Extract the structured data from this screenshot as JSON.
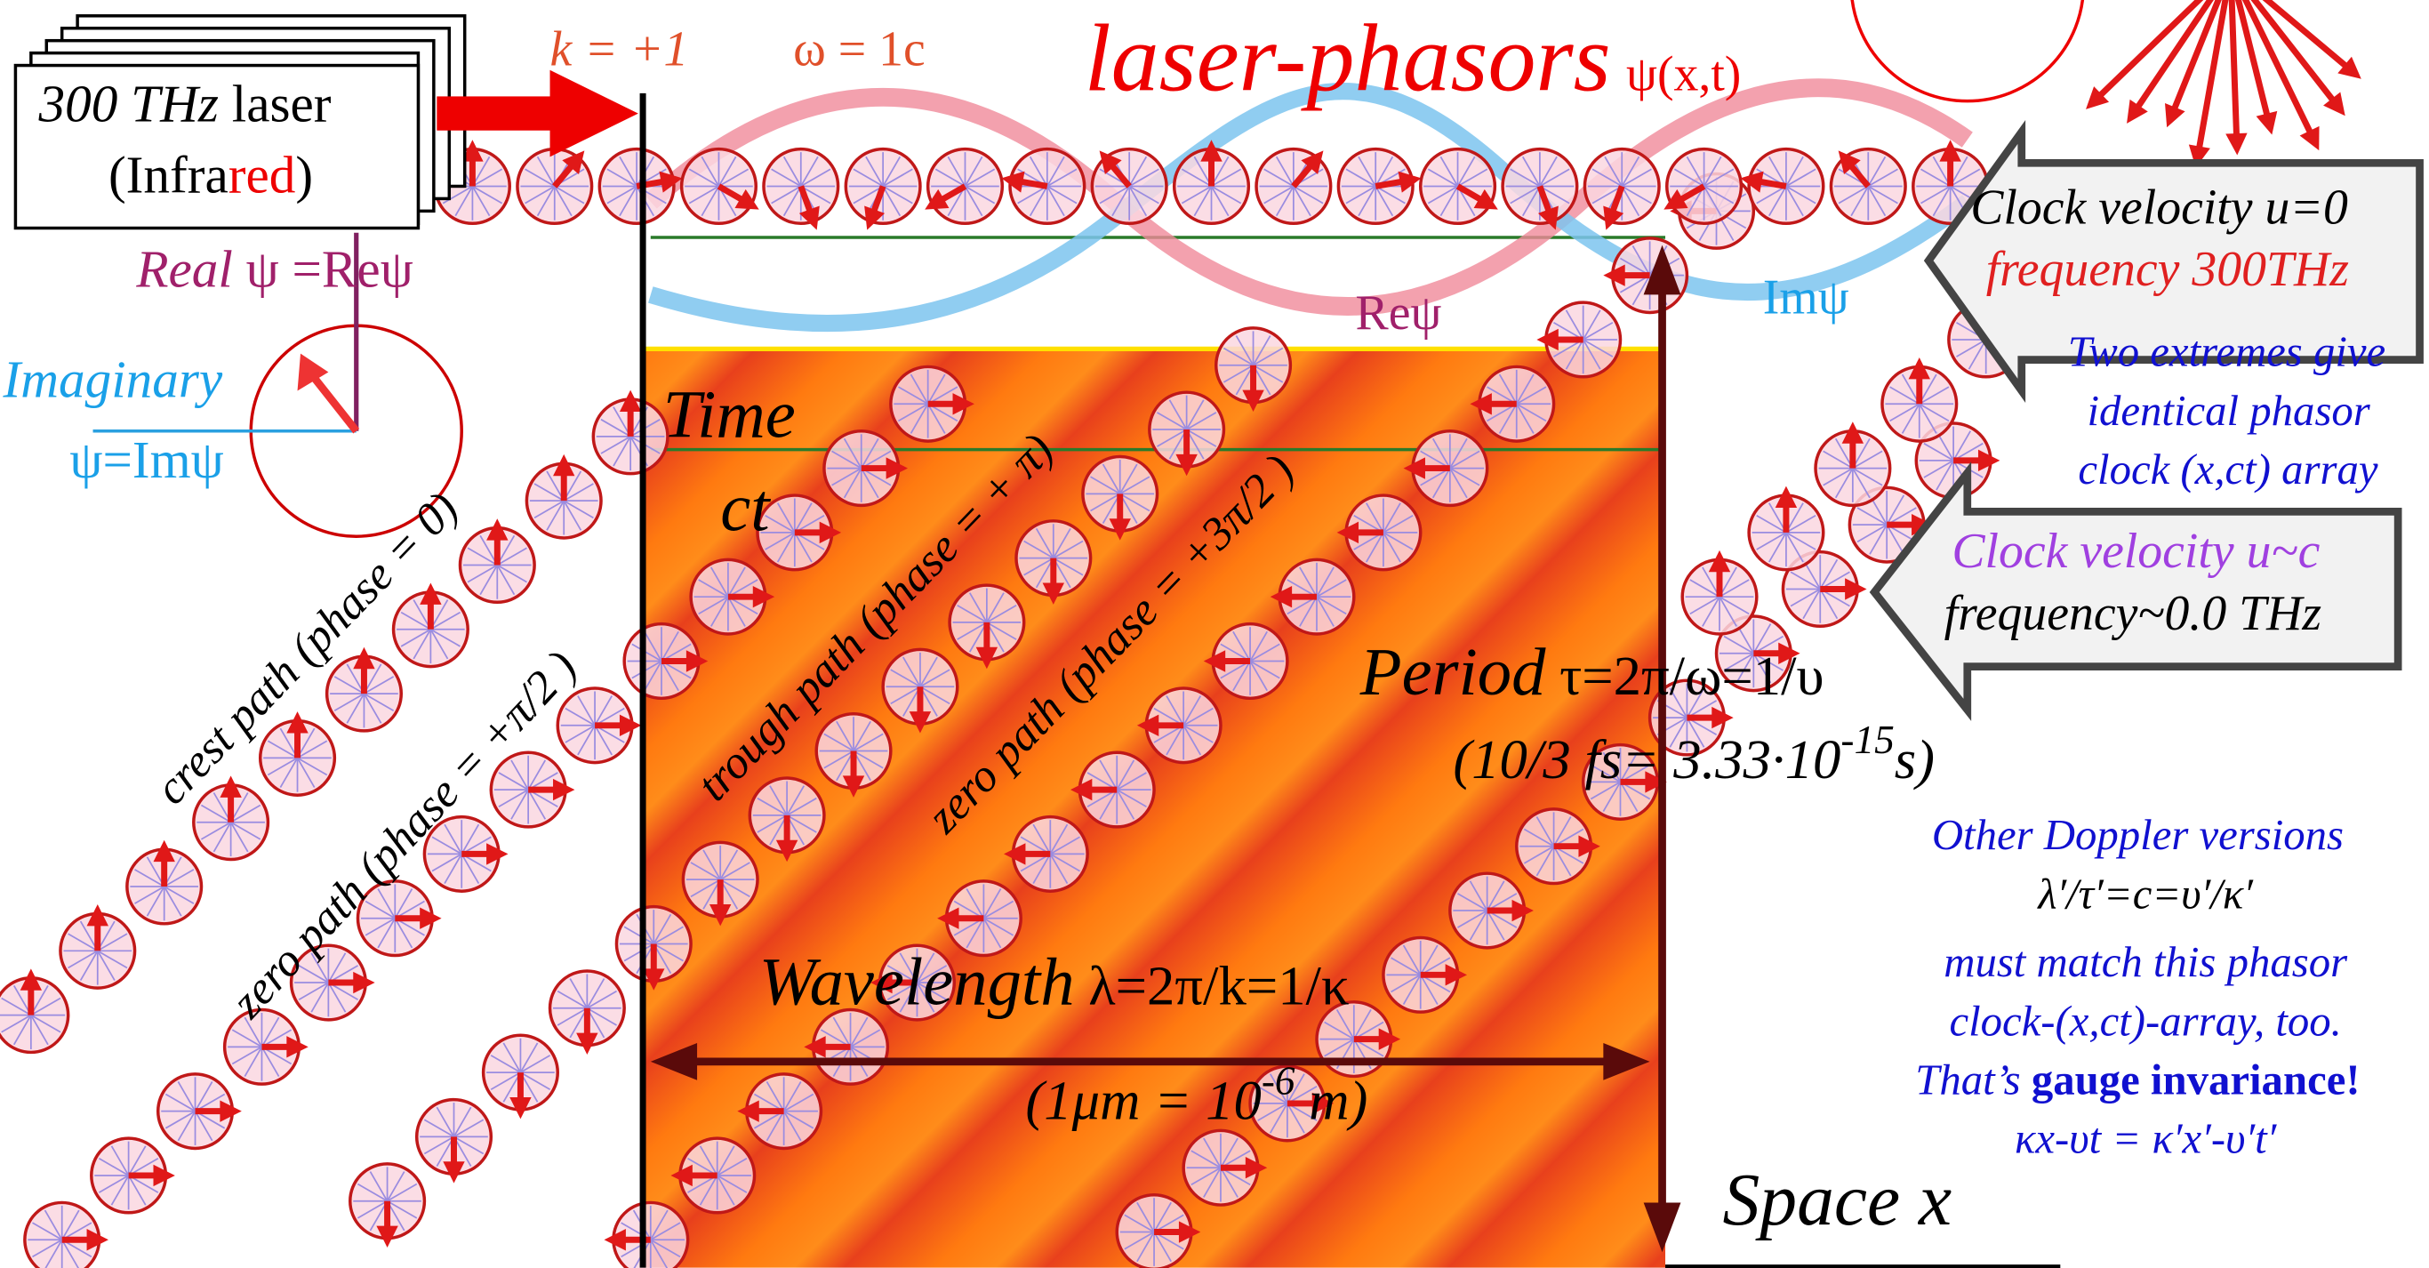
{
  "laser_box": {
    "power": "300 THz",
    "label": " laser",
    "open": "(Infra",
    "red": "red",
    "close": ")"
  },
  "wave_numbers": {
    "k": "k = +1",
    "omega": "ω = 1c"
  },
  "title": {
    "main": "laser-phasors",
    "function": "ψ(x,t)"
  },
  "real_label": {
    "word": "Real",
    "formula": " ψ =Reψ"
  },
  "imaginary_label": {
    "word": "Imaginary",
    "formula": "ψ=Imψ"
  },
  "axes": {
    "time": "Time",
    "ct": "ct",
    "space": "Space x"
  },
  "wave_labels": {
    "re": "Reψ",
    "im": "Imψ"
  },
  "arrows": [
    {
      "line1": "Clock velocity u=0",
      "line2": "frequency 300THz"
    },
    {
      "line1": "Clock velocity u~c",
      "line2": "frequency~0.0 THz"
    }
  ],
  "extremes_note": [
    "Two extremes give",
    "identical phasor",
    "clock (x,ct) array"
  ],
  "period": {
    "word": "Period",
    "formula": " τ=2π/ω=1/υ",
    "value": "(10/3 fs= 3.33·10",
    "exponent": "-15",
    "unit": "s)"
  },
  "wavelength": {
    "word": "Wavelength",
    "formula": " λ=2π/k=1/κ",
    "value": "(1μm  = 10",
    "exponent": "-6",
    "unit": " m)"
  },
  "paths": [
    "crest path (phase = 0)",
    "zero path (phase = +π/2 )",
    "trough path (phase = + π)",
    "zero path (phase = +3π/2 )"
  ],
  "doppler_note": {
    "lines": [
      "Other Doppler versions",
      "λ′/τ′=c=υ′/κ′",
      "must match this phasor",
      "clock-(x,ct)-array, too."
    ],
    "thats": "That’s ",
    "gauge": "gauge invariance!",
    "formula": "κx-υt = κ′x′-υ′t′"
  }
}
